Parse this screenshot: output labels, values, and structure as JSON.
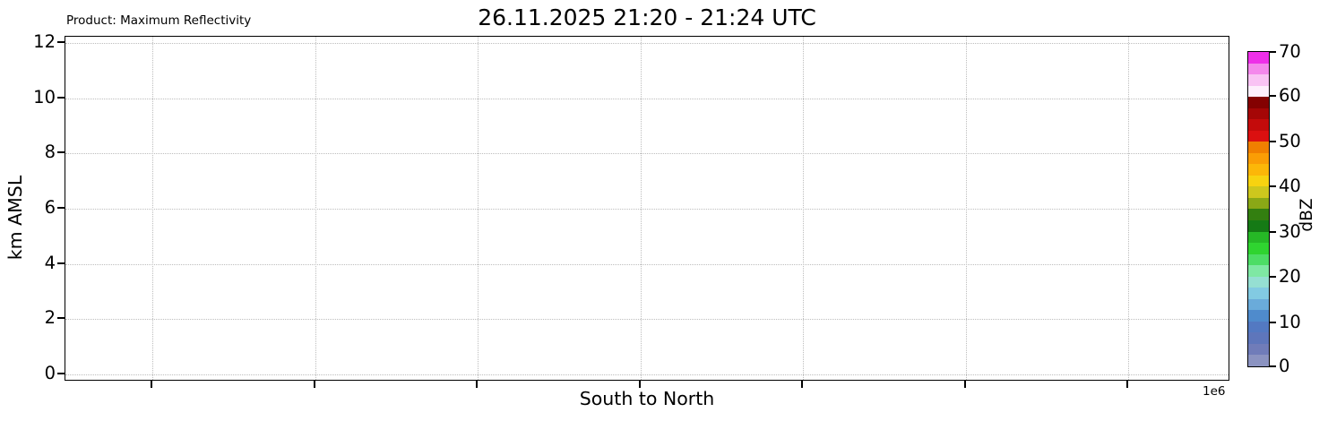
{
  "header": {
    "product_label": "Product: Maximum Reflectivity",
    "title": "26.11.2025 21:20 - 21:24 UTC"
  },
  "chart_data": {
    "type": "heatmap",
    "title": "26.11.2025 21:20 - 21:24 UTC",
    "product": "Maximum Reflectivity",
    "xlabel": "South to North",
    "ylabel": "km AMSL",
    "x_offset_label": "1e6",
    "x_tick_labels_visible": false,
    "x_tick_count": 7,
    "ylim": [
      0,
      12
    ],
    "y_ticks": [
      0,
      2,
      4,
      6,
      8,
      10,
      12
    ],
    "grid": true,
    "grid_style": "dotted",
    "values": [],
    "colorbar": {
      "label": "dBZ",
      "range": [
        0,
        70
      ],
      "band_step": 2.5,
      "ticks": [
        0,
        10,
        20,
        30,
        40,
        50,
        60,
        70
      ],
      "colors_bottom_to_top": [
        "#8b93c1",
        "#707cb9",
        "#5e76bb",
        "#5379c2",
        "#4f8bcc",
        "#6aabda",
        "#82cae2",
        "#95dfd2",
        "#7fe8a3",
        "#4ddd65",
        "#2fd430",
        "#26b826",
        "#157a15",
        "#337f10",
        "#8aa816",
        "#cdc71d",
        "#f7d310",
        "#fcb708",
        "#fa9d05",
        "#f07f00",
        "#db1010",
        "#c40b0b",
        "#a50606",
        "#840101",
        "#fdeffc",
        "#f9c3f4",
        "#f488ec",
        "#ee2fe8"
      ]
    }
  }
}
